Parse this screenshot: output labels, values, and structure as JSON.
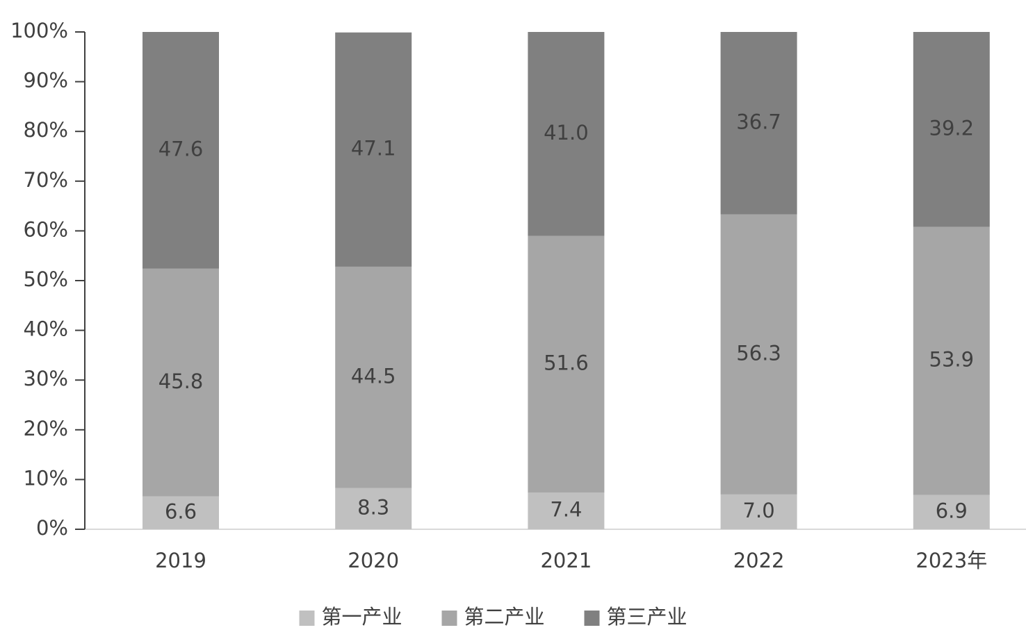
{
  "chart_data": {
    "type": "stacked_bar",
    "categories": [
      "2019",
      "2020",
      "2021",
      "2022",
      "2023年"
    ],
    "series": [
      {
        "name": "第一产业",
        "color": "#c0c0c0",
        "values": [
          6.6,
          8.3,
          7.4,
          7.0,
          6.9
        ],
        "value_labels": [
          "6.6",
          "8.3",
          "7.4",
          "7.0",
          "6.9"
        ]
      },
      {
        "name": "第二产业",
        "color": "#a6a6a6",
        "values": [
          45.8,
          44.5,
          51.6,
          56.3,
          53.9
        ],
        "value_labels": [
          "45.8",
          "44.5",
          "51.6",
          "56.3",
          "53.9"
        ]
      },
      {
        "name": "第三产业",
        "color": "#808080",
        "values": [
          47.6,
          47.1,
          41.0,
          36.7,
          39.2
        ],
        "value_labels": [
          "47.6",
          "47.1",
          "41.0",
          "36.7",
          "39.2"
        ]
      }
    ],
    "ylim": [
      0,
      100
    ],
    "yticks": [
      {
        "value": 0,
        "label": "0%"
      },
      {
        "value": 10,
        "label": "10%"
      },
      {
        "value": 20,
        "label": "20%"
      },
      {
        "value": 30,
        "label": "30%"
      },
      {
        "value": 40,
        "label": "40%"
      },
      {
        "value": 50,
        "label": "50%"
      },
      {
        "value": 60,
        "label": "60%"
      },
      {
        "value": 70,
        "label": "70%"
      },
      {
        "value": 80,
        "label": "80%"
      },
      {
        "value": 90,
        "label": "90%"
      },
      {
        "value": 100,
        "label": "100%"
      }
    ],
    "legend": "bottom"
  }
}
